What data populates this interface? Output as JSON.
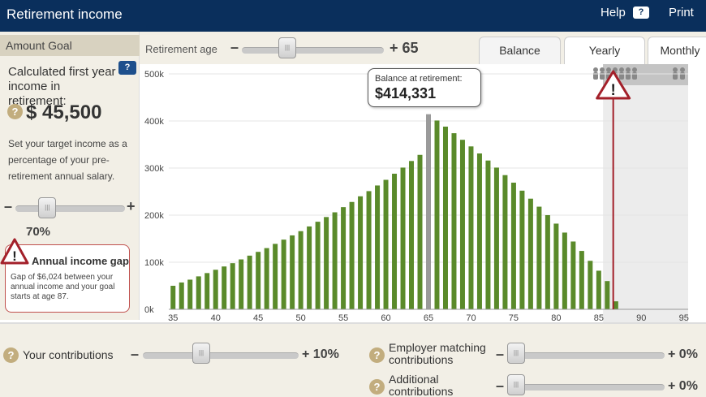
{
  "header": {
    "title": "Retirement income",
    "help_label": "Help",
    "help_icon": "?",
    "print_label": "Print"
  },
  "left_panel": {
    "goal_label": "Amount Goal",
    "calc_label": "Calculated first year income in retirement:",
    "calc_help_icon": "?",
    "amount": "$ 45,500",
    "target_text": "Set your target income as a percentage of your pre-retirement annual salary.",
    "slider_minus": "–",
    "slider_plus": "+",
    "slider_value": "70%",
    "slider_level": 0.25,
    "gap_title": "Annual income gap",
    "gap_text": "Gap of $6,024 between your annual income and your goal starts at age 87."
  },
  "chart_controls": {
    "retirement_age_label": "Retirement age",
    "minus": "–",
    "retirement_age_value": "+ 65",
    "tabs": [
      {
        "label": "Balance",
        "active": true
      },
      {
        "label": "Yearly",
        "active": false
      },
      {
        "label": "Monthly",
        "active": false
      }
    ]
  },
  "tooltip": {
    "label": "Balance at retirement:",
    "value": "$414,331"
  },
  "bottom": {
    "your_contributions_label": "Your contributions",
    "your_contributions_value": "+ 10%",
    "employer_label": "Employer matching contributions",
    "employer_value": "+ 0%",
    "additional_label": "Additional contributions",
    "additional_value": "+ 0%"
  },
  "colors": {
    "header_bg": "#0a2f5c",
    "bar_green": "#5a8a2a",
    "bar_highlight": "#9a9a9a",
    "warning_red": "#a3202a",
    "panel_bg": "#f2efe6"
  },
  "chart_data": {
    "type": "bar",
    "xlabel": "",
    "ylabel": "",
    "x_ticks": [
      35,
      40,
      45,
      50,
      55,
      60,
      65,
      70,
      75,
      80,
      85,
      90,
      95
    ],
    "y_ticks": [
      "0k",
      "100k",
      "200k",
      "300k",
      "400k",
      "500k"
    ],
    "ylim": [
      0,
      500000
    ],
    "xlim": [
      34.5,
      95.5
    ],
    "highlight_age": 65,
    "shortfall_age": 87,
    "x": [
      35,
      36,
      37,
      38,
      39,
      40,
      41,
      42,
      43,
      44,
      45,
      46,
      47,
      48,
      49,
      50,
      51,
      52,
      53,
      54,
      55,
      56,
      57,
      58,
      59,
      60,
      61,
      62,
      63,
      64,
      65,
      66,
      67,
      68,
      69,
      70,
      71,
      72,
      73,
      74,
      75,
      76,
      77,
      78,
      79,
      80,
      81,
      82,
      83,
      84,
      85,
      86,
      87
    ],
    "values": [
      50000,
      57000,
      63000,
      70000,
      77000,
      84000,
      91000,
      98000,
      106000,
      114000,
      122000,
      130000,
      139000,
      148000,
      157000,
      166000,
      176000,
      186000,
      196000,
      206000,
      217000,
      228000,
      240000,
      251000,
      263000,
      275000,
      288000,
      301000,
      315000,
      328000,
      414331,
      401000,
      388000,
      374000,
      360000,
      346000,
      331000,
      316000,
      301000,
      285000,
      269000,
      252000,
      235000,
      218000,
      200000,
      182000,
      163000,
      144000,
      124000,
      103000,
      82000,
      60000,
      17000
    ]
  }
}
